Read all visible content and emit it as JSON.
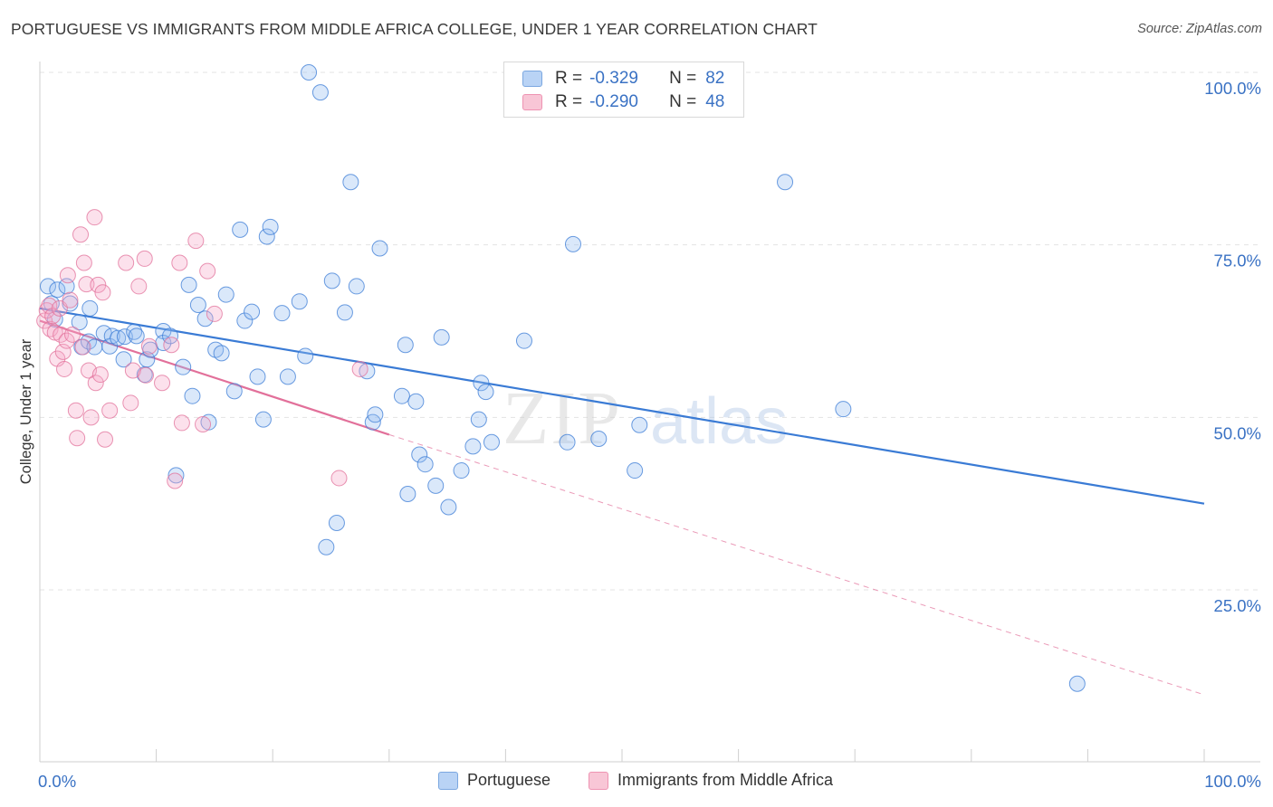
{
  "title": "PORTUGUESE VS IMMIGRANTS FROM MIDDLE AFRICA COLLEGE, UNDER 1 YEAR CORRELATION CHART",
  "source": "Source: ZipAtlas.com",
  "watermark": {
    "part1": "ZIP",
    "part2": "atlas"
  },
  "legend": {
    "rows": [
      {
        "r_label": "R =",
        "r_value": "-0.329",
        "n_label": "N =",
        "n_value": "82",
        "fill": "#b9d3f5",
        "stroke": "#7ba7e0"
      },
      {
        "r_label": "R =",
        "r_value": "-0.290",
        "n_label": "N =",
        "n_value": "48",
        "fill": "#f8c6d6",
        "stroke": "#ee93b2"
      }
    ]
  },
  "bottom_legend": [
    {
      "label": "Portuguese",
      "fill": "#b9d3f5",
      "stroke": "#7ba7e0"
    },
    {
      "label": "Immigrants from Middle Africa",
      "fill": "#f8c6d6",
      "stroke": "#ee93b2"
    }
  ],
  "chart_data": {
    "type": "scatter",
    "ylabel": "College, Under 1 year",
    "xlabel": "",
    "xlim": [
      0,
      100
    ],
    "ylim": [
      0,
      102
    ],
    "x_tick_labels": [
      {
        "value": 0,
        "label": "0.0%"
      },
      {
        "value": 100,
        "label": "100.0%"
      }
    ],
    "y_tick_labels": [
      {
        "value": 25,
        "label": "25.0%"
      },
      {
        "value": 50,
        "label": "50.0%"
      },
      {
        "value": 75,
        "label": "75.0%"
      },
      {
        "value": 100,
        "label": "100.0%"
      }
    ],
    "grid": true,
    "colors": {
      "blue": "#3a7bd5",
      "pink": "#e2709a",
      "axis_label": "#3a72c4"
    },
    "series": [
      {
        "name": "Portuguese",
        "color": "#3a7bd5",
        "fill": "rgba(150,190,240,0.35)",
        "points": [
          [
            0.7,
            69.0
          ],
          [
            1.0,
            66.5
          ],
          [
            1.3,
            64.2
          ],
          [
            1.5,
            68.5
          ],
          [
            2.3,
            69.0
          ],
          [
            2.6,
            66.5
          ],
          [
            3.4,
            63.8
          ],
          [
            3.6,
            60.2
          ],
          [
            4.2,
            61.0
          ],
          [
            4.3,
            65.8
          ],
          [
            4.7,
            60.2
          ],
          [
            5.5,
            62.2
          ],
          [
            6.0,
            60.3
          ],
          [
            6.2,
            61.8
          ],
          [
            6.7,
            61.5
          ],
          [
            7.2,
            58.4
          ],
          [
            7.3,
            61.7
          ],
          [
            8.1,
            62.4
          ],
          [
            8.3,
            61.8
          ],
          [
            9.2,
            58.4
          ],
          [
            9.0,
            56.2
          ],
          [
            9.5,
            59.8
          ],
          [
            10.6,
            62.5
          ],
          [
            10.6,
            60.8
          ],
          [
            11.2,
            61.8
          ],
          [
            11.7,
            41.6
          ],
          [
            12.3,
            57.3
          ],
          [
            12.8,
            69.2
          ],
          [
            13.1,
            53.1
          ],
          [
            13.6,
            66.3
          ],
          [
            14.2,
            64.3
          ],
          [
            14.5,
            49.3
          ],
          [
            15.1,
            59.8
          ],
          [
            15.6,
            59.3
          ],
          [
            16.0,
            67.8
          ],
          [
            16.7,
            53.8
          ],
          [
            17.2,
            77.2
          ],
          [
            17.6,
            64.0
          ],
          [
            18.2,
            65.3
          ],
          [
            18.7,
            55.9
          ],
          [
            19.2,
            49.7
          ],
          [
            19.5,
            76.2
          ],
          [
            19.8,
            77.6
          ],
          [
            20.8,
            65.1
          ],
          [
            21.3,
            55.9
          ],
          [
            22.3,
            66.8
          ],
          [
            22.8,
            58.9
          ],
          [
            23.1,
            100.0
          ],
          [
            24.1,
            97.1
          ],
          [
            24.6,
            31.2
          ],
          [
            25.1,
            69.8
          ],
          [
            25.5,
            34.7
          ],
          [
            26.2,
            65.2
          ],
          [
            26.7,
            84.1
          ],
          [
            27.2,
            69.0
          ],
          [
            28.1,
            56.7
          ],
          [
            28.6,
            49.3
          ],
          [
            28.8,
            50.4
          ],
          [
            29.2,
            74.5
          ],
          [
            31.1,
            53.1
          ],
          [
            31.4,
            60.5
          ],
          [
            31.6,
            38.9
          ],
          [
            32.3,
            52.3
          ],
          [
            32.6,
            44.6
          ],
          [
            33.1,
            43.2
          ],
          [
            34.0,
            40.1
          ],
          [
            34.5,
            61.6
          ],
          [
            35.1,
            37.0
          ],
          [
            36.2,
            42.3
          ],
          [
            37.2,
            45.8
          ],
          [
            37.7,
            49.7
          ],
          [
            37.9,
            55.0
          ],
          [
            38.3,
            53.7
          ],
          [
            38.8,
            46.4
          ],
          [
            41.0,
            100.0
          ],
          [
            41.6,
            61.1
          ],
          [
            45.3,
            46.4
          ],
          [
            45.8,
            75.1
          ],
          [
            48.0,
            46.9
          ],
          [
            51.1,
            42.3
          ],
          [
            51.5,
            48.9
          ],
          [
            64.0,
            84.1
          ],
          [
            69.0,
            51.2
          ],
          [
            89.1,
            11.4
          ]
        ],
        "trend": {
          "x": [
            0,
            100
          ],
          "y": [
            65.8,
            37.5
          ]
        }
      },
      {
        "name": "Immigrants from Middle Africa",
        "color": "#e2709a",
        "fill": "rgba(245,170,200,0.35)",
        "points": [
          [
            0.4,
            64.0
          ],
          [
            0.6,
            65.5
          ],
          [
            0.8,
            66.2
          ],
          [
            0.9,
            62.8
          ],
          [
            1.1,
            64.7
          ],
          [
            1.3,
            62.3
          ],
          [
            1.5,
            58.5
          ],
          [
            1.7,
            65.8
          ],
          [
            1.8,
            62.0
          ],
          [
            2.0,
            59.5
          ],
          [
            2.1,
            57.0
          ],
          [
            2.3,
            61.1
          ],
          [
            2.4,
            70.6
          ],
          [
            2.6,
            67.0
          ],
          [
            2.8,
            62.0
          ],
          [
            3.1,
            51.0
          ],
          [
            3.2,
            47.0
          ],
          [
            3.5,
            76.5
          ],
          [
            3.7,
            60.2
          ],
          [
            3.8,
            72.4
          ],
          [
            4.0,
            69.3
          ],
          [
            4.2,
            56.8
          ],
          [
            4.4,
            50.0
          ],
          [
            4.7,
            79.0
          ],
          [
            4.8,
            55.0
          ],
          [
            5.0,
            69.2
          ],
          [
            5.2,
            56.2
          ],
          [
            5.4,
            68.1
          ],
          [
            5.6,
            46.8
          ],
          [
            6.0,
            51.0
          ],
          [
            7.4,
            72.4
          ],
          [
            7.8,
            52.1
          ],
          [
            8.0,
            56.8
          ],
          [
            8.5,
            69.0
          ],
          [
            9.0,
            73.0
          ],
          [
            9.1,
            56.1
          ],
          [
            9.4,
            60.3
          ],
          [
            10.5,
            55.0
          ],
          [
            11.3,
            60.5
          ],
          [
            11.6,
            40.8
          ],
          [
            12.0,
            72.4
          ],
          [
            12.2,
            49.2
          ],
          [
            13.4,
            75.6
          ],
          [
            14.0,
            49.0
          ],
          [
            14.4,
            71.2
          ],
          [
            15.0,
            65.0
          ],
          [
            25.7,
            41.2
          ],
          [
            27.5,
            57.0
          ]
        ],
        "trend": {
          "x": [
            0,
            30
          ],
          "y": [
            64.0,
            47.5
          ]
        },
        "trend_extended": {
          "x": [
            30,
            100
          ],
          "y": [
            47.5,
            9.8
          ]
        }
      }
    ]
  }
}
